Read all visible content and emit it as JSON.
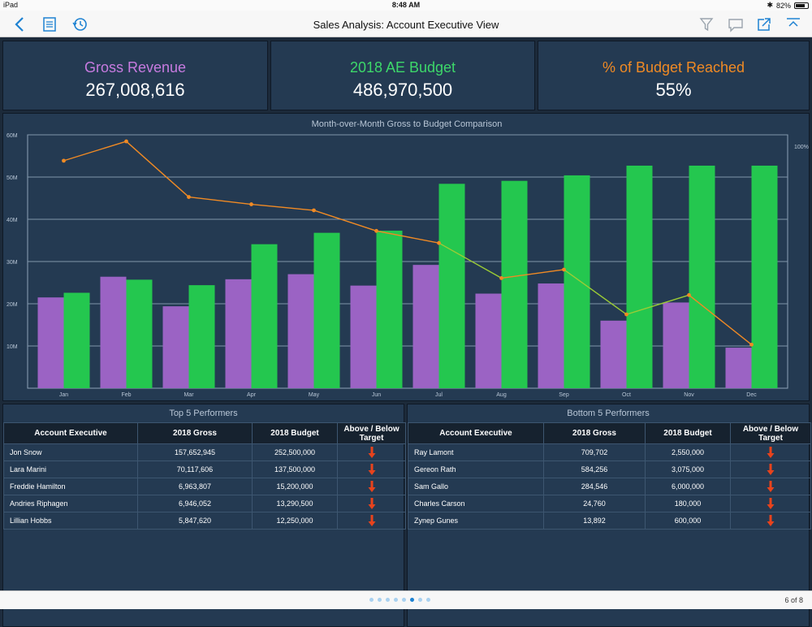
{
  "status_bar": {
    "carrier": "iPad",
    "time": "8:48 AM",
    "battery": "82%"
  },
  "nav": {
    "title": "Sales Analysis: Account Executive View",
    "left_icons": [
      "back-chevron-icon",
      "list-icon",
      "history-icon"
    ],
    "right_icons": [
      "filter-icon",
      "comment-icon",
      "share-icon",
      "collapse-icon"
    ]
  },
  "kpis": {
    "gross_revenue": {
      "label": "Gross Revenue",
      "value": "267,008,616",
      "color": "#c77be0"
    },
    "ae_budget": {
      "label": "2018 AE Budget",
      "value": "486,970,500",
      "color": "#3dd86a"
    },
    "budget_reached": {
      "label": "% of Budget Reached",
      "value": "55%",
      "color": "#f08a24"
    }
  },
  "chart": {
    "title": "Month-over-Month Gross to Budget Comparison"
  },
  "chart_data": {
    "type": "bar",
    "title": "Month-over-Month Gross to Budget Comparison",
    "categories": [
      "Jan",
      "Feb",
      "Mar",
      "Apr",
      "May",
      "Jun",
      "Jul",
      "Aug",
      "Sep",
      "Oct",
      "Nov",
      "Dec"
    ],
    "y_ticks": [
      "10M",
      "20M",
      "30M",
      "40M",
      "50M",
      "60M"
    ],
    "y2_ticks": [
      "100%"
    ],
    "ylim": [
      0,
      60000000
    ],
    "y2lim": [
      0,
      1.0
    ],
    "grid": true,
    "series": [
      {
        "type": "bar",
        "color": "#9b63c4",
        "values": [
          21500000,
          26400000,
          19400000,
          25800000,
          27000000,
          24300000,
          29200000,
          22400000,
          24800000,
          16000000,
          20300000,
          9600000
        ]
      },
      {
        "type": "bar",
        "color": "#24c74f",
        "values": [
          22600000,
          25700000,
          24400000,
          34100000,
          36800000,
          37300000,
          48400000,
          49100000,
          50400000,
          52700000,
          52700000,
          52700000
        ]
      },
      {
        "type": "line",
        "axis": "right",
        "values": [
          0.94,
          1.02,
          0.79,
          0.76,
          0.735,
          0.65,
          0.6,
          0.455,
          0.49,
          0.305,
          0.385,
          0.18
        ]
      }
    ]
  },
  "top_table": {
    "title": "Top 5 Performers",
    "headers": [
      "Account Executive",
      "2018 Gross",
      "2018 Budget",
      "Above / Below Target"
    ],
    "rows": [
      {
        "name": "Jon Snow",
        "gross": "157,652,945",
        "budget": "252,500,000"
      },
      {
        "name": "Lara Marini",
        "gross": "70,117,606",
        "budget": "137,500,000"
      },
      {
        "name": "Freddie Hamilton",
        "gross": "6,963,807",
        "budget": "15,200,000"
      },
      {
        "name": "Andries Riphagen",
        "gross": "6,946,052",
        "budget": "13,290,500"
      },
      {
        "name": "Lillian Hobbs",
        "gross": "5,847,620",
        "budget": "12,250,000"
      }
    ]
  },
  "bottom_table": {
    "title": "Bottom 5 Performers",
    "headers": [
      "Account Executive",
      "2018 Gross",
      "2018 Budget",
      "Above / Below Target"
    ],
    "rows": [
      {
        "name": "Ray Lamont",
        "gross": "709,702",
        "budget": "2,550,000"
      },
      {
        "name": "Gereon Rath",
        "gross": "584,256",
        "budget": "3,075,000"
      },
      {
        "name": "Sam Gallo",
        "gross": "284,546",
        "budget": "6,000,000"
      },
      {
        "name": "Charles Carson",
        "gross": "24,760",
        "budget": "180,000"
      },
      {
        "name": "Zynep Gunes",
        "gross": "13,892",
        "budget": "600,000"
      }
    ]
  },
  "target_status_color": "#e8431c",
  "pager": {
    "total_dots": 8,
    "active_dot": 6,
    "label": "6 of 8"
  }
}
